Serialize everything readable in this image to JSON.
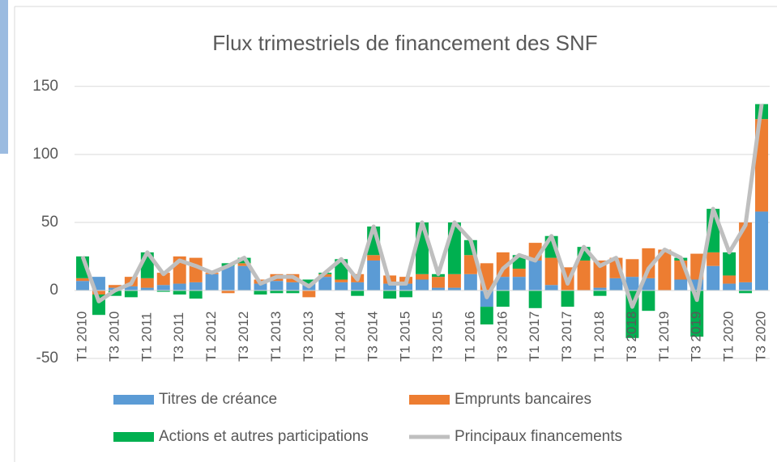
{
  "chart_data": {
    "type": "bar",
    "stacked": true,
    "title": "Flux trimestriels de financement des SNF",
    "categories": [
      "T1 2010",
      null,
      "T3 2010",
      null,
      "T1 2011",
      null,
      "T3 2011",
      null,
      "T1 2012",
      null,
      "T3 2012",
      null,
      "T1 2013",
      null,
      "T3 2013",
      null,
      "T1 2014",
      null,
      "T3 2014",
      null,
      "T1 2015",
      null,
      "T3 2015",
      null,
      "T1 2016",
      null,
      "T3 2016",
      null,
      "T1 2017",
      null,
      "T3 2017",
      null,
      "T1 2018",
      null,
      "T3 2018",
      null,
      "T1 2019",
      null,
      "T3 2019",
      null,
      "T1 2020",
      null,
      "T3 2020"
    ],
    "series": [
      {
        "name": "Titres de créance",
        "type": "bar",
        "color": "#5b9bd5",
        "values": [
          7,
          10,
          2,
          3,
          2,
          4,
          5,
          6,
          12,
          18,
          18,
          5,
          7,
          6,
          5,
          10,
          6,
          6,
          22,
          5,
          5,
          8,
          2,
          2,
          12,
          -12,
          10,
          10,
          22,
          4,
          0,
          0,
          2,
          9,
          10,
          9,
          0,
          8,
          8,
          18,
          5,
          6,
          58
        ]
      },
      {
        "name": "Emprunts bancaires",
        "type": "bar",
        "color": "#ed7d31",
        "values": [
          2,
          -3,
          2,
          7,
          7,
          9,
          20,
          18,
          1,
          -2,
          2,
          3,
          5,
          6,
          -5,
          2,
          2,
          6,
          4,
          6,
          5,
          4,
          8,
          10,
          14,
          20,
          18,
          6,
          13,
          20,
          17,
          22,
          20,
          15,
          13,
          22,
          30,
          14,
          19,
          10,
          6,
          44,
          68
        ]
      },
      {
        "name": "Actions et autres participations",
        "type": "bar",
        "color": "#00b050",
        "values": [
          16,
          -15,
          -4,
          -5,
          19,
          -1,
          -3,
          -6,
          0,
          2,
          4,
          -3,
          -2,
          -2,
          3,
          1,
          15,
          -4,
          21,
          -6,
          -5,
          38,
          2,
          38,
          11,
          -13,
          -12,
          10,
          -13,
          16,
          -12,
          10,
          -4,
          0,
          -35,
          -15,
          0,
          2,
          -34,
          32,
          17,
          -2,
          11
        ]
      },
      {
        "name": "Principaux financements",
        "type": "line",
        "color": "#bfbfbf",
        "values": [
          25,
          -8,
          0,
          5,
          28,
          12,
          22,
          18,
          13,
          18,
          24,
          5,
          10,
          10,
          3,
          13,
          23,
          8,
          47,
          5,
          5,
          50,
          12,
          50,
          37,
          -5,
          16,
          26,
          22,
          40,
          5,
          32,
          18,
          24,
          -12,
          16,
          30,
          24,
          -7,
          60,
          28,
          48,
          137
        ]
      }
    ],
    "ylim": [
      -50,
      160
    ],
    "yticks": [
      -50,
      0,
      50,
      100,
      150
    ],
    "grid": true
  }
}
